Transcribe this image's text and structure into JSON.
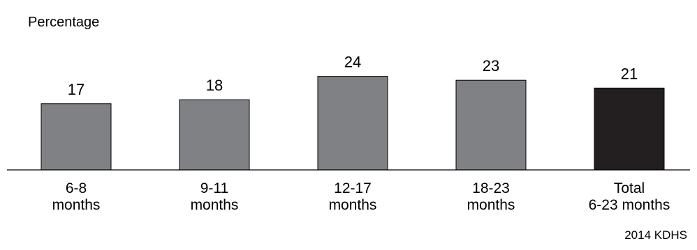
{
  "chart_data": {
    "type": "bar",
    "title": "",
    "xlabel": "",
    "ylabel": "Percentage",
    "categories": [
      [
        "6-8",
        "months"
      ],
      [
        "9-11",
        "months"
      ],
      [
        "12-17",
        "months"
      ],
      [
        "18-23",
        "months"
      ],
      [
        "Total",
        "6-23 months"
      ]
    ],
    "values": [
      17,
      18,
      24,
      23,
      21
    ],
    "bar_colors": [
      "#808184",
      "#808184",
      "#808184",
      "#808184",
      "#231f20"
    ],
    "ylim": [
      0,
      25
    ],
    "grid": false,
    "legend": "none",
    "source": "2014 KDHS"
  }
}
